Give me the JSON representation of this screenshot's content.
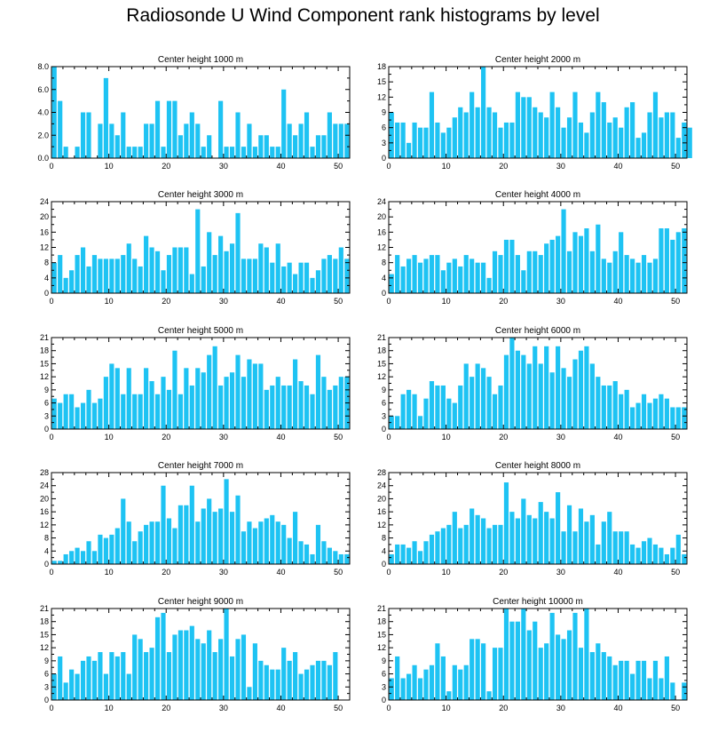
{
  "title": "Radiosonde U Wind Component rank histograms by level",
  "bar_color": "#1ec3f3",
  "chart_data": [
    {
      "type": "bar",
      "title": "Center height 1000 m",
      "xlabel": "",
      "ylabel": "",
      "xlim": [
        0,
        52
      ],
      "xticks": [
        0,
        10,
        20,
        30,
        40,
        50
      ],
      "ylim": [
        0,
        8
      ],
      "yticks": [
        0,
        2,
        4,
        6,
        8
      ],
      "ytick_labels": [
        "0.0",
        "2.0",
        "4.0",
        "6.0",
        "8.0"
      ],
      "values": [
        8,
        5,
        1,
        0,
        1,
        4,
        4,
        0,
        3,
        7,
        3,
        2,
        4,
        1,
        1,
        1,
        3,
        3,
        5,
        1,
        5,
        5,
        2,
        3,
        4,
        3,
        1,
        2,
        0,
        5,
        1,
        1,
        4,
        1,
        3,
        1,
        2,
        2,
        1,
        1,
        6,
        3,
        2,
        3,
        4,
        1,
        2,
        2,
        4,
        3,
        3,
        3
      ]
    },
    {
      "type": "bar",
      "title": "Center height 2000 m",
      "xlabel": "",
      "ylabel": "",
      "xlim": [
        0,
        52
      ],
      "xticks": [
        0,
        10,
        20,
        30,
        40,
        50
      ],
      "ylim": [
        0,
        18
      ],
      "yticks": [
        0,
        3,
        6,
        9,
        12,
        15,
        18
      ],
      "ytick_labels": [
        "0",
        "3",
        "6",
        "9",
        "12",
        "15",
        "18"
      ],
      "values": [
        9,
        7,
        7,
        3,
        7,
        6,
        6,
        13,
        7,
        5,
        6,
        8,
        10,
        9,
        13,
        10,
        18,
        10,
        9,
        6,
        7,
        7,
        13,
        12,
        12,
        10,
        9,
        8,
        13,
        10,
        6,
        8,
        13,
        7,
        5,
        9,
        13,
        11,
        7,
        8,
        6,
        10,
        11,
        4,
        5,
        9,
        13,
        8,
        9,
        9,
        4,
        7,
        6
      ]
    },
    {
      "type": "bar",
      "title": "Center height 3000 m",
      "xlabel": "",
      "ylabel": "",
      "xlim": [
        0,
        52
      ],
      "xticks": [
        0,
        10,
        20,
        30,
        40,
        50
      ],
      "ylim": [
        0,
        24
      ],
      "yticks": [
        0,
        4,
        8,
        12,
        16,
        20,
        24
      ],
      "ytick_labels": [
        "0",
        "4",
        "8",
        "12",
        "16",
        "20",
        "24"
      ],
      "values": [
        8,
        10,
        4,
        6,
        10,
        12,
        7,
        10,
        9,
        9,
        9,
        9,
        10,
        13,
        9,
        7,
        15,
        12,
        11,
        6,
        10,
        12,
        12,
        12,
        5,
        22,
        7,
        16,
        10,
        15,
        11,
        13,
        21,
        9,
        9,
        9,
        13,
        12,
        8,
        13,
        7,
        8,
        5,
        8,
        8,
        4,
        6,
        9,
        10,
        9,
        12,
        9
      ]
    },
    {
      "type": "bar",
      "title": "Center height 4000 m",
      "xlabel": "",
      "ylabel": "",
      "xlim": [
        0,
        52
      ],
      "xticks": [
        0,
        10,
        20,
        30,
        40,
        50
      ],
      "ylim": [
        0,
        24
      ],
      "yticks": [
        0,
        4,
        8,
        12,
        16,
        20,
        24
      ],
      "ytick_labels": [
        "0",
        "4",
        "8",
        "12",
        "16",
        "20",
        "24"
      ],
      "values": [
        5,
        10,
        7,
        9,
        10,
        8,
        9,
        10,
        10,
        6,
        8,
        9,
        7,
        10,
        9,
        8,
        8,
        4,
        11,
        10,
        14,
        14,
        10,
        6,
        11,
        11,
        10,
        13,
        14,
        15,
        22,
        11,
        16,
        15,
        17,
        11,
        18,
        9,
        8,
        11,
        16,
        10,
        9,
        8,
        10,
        8,
        9,
        17,
        17,
        14,
        16,
        17
      ]
    },
    {
      "type": "bar",
      "title": "Center height 5000 m",
      "xlabel": "",
      "ylabel": "",
      "xlim": [
        0,
        52
      ],
      "xticks": [
        0,
        10,
        20,
        30,
        40,
        50
      ],
      "ylim": [
        0,
        21
      ],
      "yticks": [
        0,
        3,
        6,
        9,
        12,
        15,
        18,
        21
      ],
      "ytick_labels": [
        "0",
        "3",
        "6",
        "9",
        "12",
        "15",
        "18",
        "21"
      ],
      "values": [
        7,
        6,
        8,
        8,
        5,
        6,
        9,
        6,
        7,
        12,
        15,
        14,
        8,
        14,
        8,
        8,
        14,
        11,
        8,
        12,
        9,
        18,
        8,
        14,
        10,
        14,
        13,
        17,
        19,
        10,
        12,
        13,
        17,
        12,
        16,
        15,
        15,
        9,
        10,
        12,
        10,
        10,
        16,
        11,
        10,
        8,
        17,
        12,
        9,
        10,
        12,
        12
      ]
    },
    {
      "type": "bar",
      "title": "Center height 6000 m",
      "xlabel": "",
      "ylabel": "",
      "xlim": [
        0,
        52
      ],
      "xticks": [
        0,
        10,
        20,
        30,
        40,
        50
      ],
      "ylim": [
        0,
        21
      ],
      "yticks": [
        0,
        3,
        6,
        9,
        12,
        15,
        18,
        21
      ],
      "ytick_labels": [
        "0",
        "3",
        "6",
        "9",
        "12",
        "15",
        "18",
        "21"
      ],
      "values": [
        3,
        3,
        8,
        9,
        8,
        3,
        7,
        11,
        10,
        10,
        7,
        6,
        10,
        15,
        12,
        15,
        14,
        12,
        8,
        10,
        17,
        21,
        18,
        17,
        15,
        19,
        15,
        19,
        13,
        19,
        14,
        12,
        16,
        18,
        19,
        15,
        12,
        10,
        10,
        11,
        8,
        9,
        5,
        6,
        8,
        6,
        7,
        8,
        7,
        5,
        5,
        5
      ]
    },
    {
      "type": "bar",
      "title": "Center height 7000 m",
      "xlabel": "",
      "ylabel": "",
      "xlim": [
        0,
        52
      ],
      "xticks": [
        0,
        10,
        20,
        30,
        40,
        50
      ],
      "ylim": [
        0,
        28
      ],
      "yticks": [
        0,
        4,
        8,
        12,
        16,
        20,
        24,
        28
      ],
      "ytick_labels": [
        "0",
        "4",
        "8",
        "12",
        "16",
        "20",
        "24",
        "28"
      ],
      "values": [
        1,
        1,
        3,
        4,
        5,
        4,
        7,
        4,
        9,
        8,
        9,
        11,
        20,
        13,
        7,
        10,
        12,
        13,
        13,
        24,
        14,
        11,
        18,
        18,
        24,
        13,
        17,
        20,
        16,
        17,
        26,
        16,
        21,
        10,
        13,
        11,
        13,
        14,
        15,
        13,
        12,
        8,
        16,
        7,
        6,
        3,
        12,
        7,
        5,
        4,
        3,
        3
      ]
    },
    {
      "type": "bar",
      "title": "Center height 8000 m",
      "xlabel": "",
      "ylabel": "",
      "xlim": [
        0,
        52
      ],
      "xticks": [
        0,
        10,
        20,
        30,
        40,
        50
      ],
      "ylim": [
        0,
        28
      ],
      "yticks": [
        0,
        4,
        8,
        12,
        16,
        20,
        24,
        28
      ],
      "ytick_labels": [
        "0",
        "4",
        "8",
        "12",
        "16",
        "20",
        "24",
        "28"
      ],
      "values": [
        3,
        6,
        6,
        5,
        7,
        4,
        7,
        9,
        10,
        11,
        12,
        16,
        11,
        12,
        17,
        15,
        14,
        11,
        12,
        12,
        25,
        16,
        14,
        20,
        15,
        14,
        19,
        16,
        14,
        22,
        10,
        18,
        10,
        17,
        13,
        15,
        6,
        13,
        16,
        10,
        10,
        10,
        6,
        5,
        7,
        8,
        6,
        5,
        3,
        5,
        9,
        3
      ]
    },
    {
      "type": "bar",
      "title": "Center height 9000 m",
      "xlabel": "",
      "ylabel": "",
      "xlim": [
        0,
        52
      ],
      "xticks": [
        0,
        10,
        20,
        30,
        40,
        50
      ],
      "ylim": [
        0,
        21
      ],
      "yticks": [
        0,
        3,
        6,
        9,
        12,
        15,
        18,
        21
      ],
      "ytick_labels": [
        "0",
        "3",
        "6",
        "9",
        "12",
        "15",
        "18",
        "21"
      ],
      "values": [
        6,
        10,
        4,
        7,
        6,
        9,
        10,
        9,
        11,
        6,
        11,
        10,
        11,
        6,
        15,
        14,
        11,
        12,
        19,
        20,
        11,
        15,
        16,
        16,
        17,
        14,
        13,
        16,
        11,
        14,
        21,
        10,
        14,
        15,
        3,
        13,
        9,
        8,
        7,
        7,
        12,
        9,
        11,
        6,
        7,
        8,
        9,
        9,
        8,
        11
      ]
    },
    {
      "type": "bar",
      "title": "Center height 10000 m",
      "xlabel": "",
      "ylabel": "",
      "xlim": [
        0,
        52
      ],
      "xticks": [
        0,
        10,
        20,
        30,
        40,
        50
      ],
      "ylim": [
        0,
        21
      ],
      "yticks": [
        0,
        3,
        6,
        9,
        12,
        15,
        18,
        21
      ],
      "ytick_labels": [
        "0",
        "3",
        "6",
        "9",
        "12",
        "15",
        "18",
        "21"
      ],
      "values": [
        5,
        10,
        5,
        6,
        8,
        5,
        7,
        8,
        13,
        10,
        2,
        8,
        7,
        8,
        14,
        14,
        13,
        2,
        12,
        12,
        21,
        18,
        18,
        21,
        16,
        18,
        12,
        13,
        20,
        15,
        14,
        16,
        20,
        12,
        21,
        11,
        13,
        11,
        10,
        8,
        9,
        9,
        6,
        9,
        9,
        5,
        9,
        5,
        10,
        4,
        0,
        4
      ]
    }
  ]
}
